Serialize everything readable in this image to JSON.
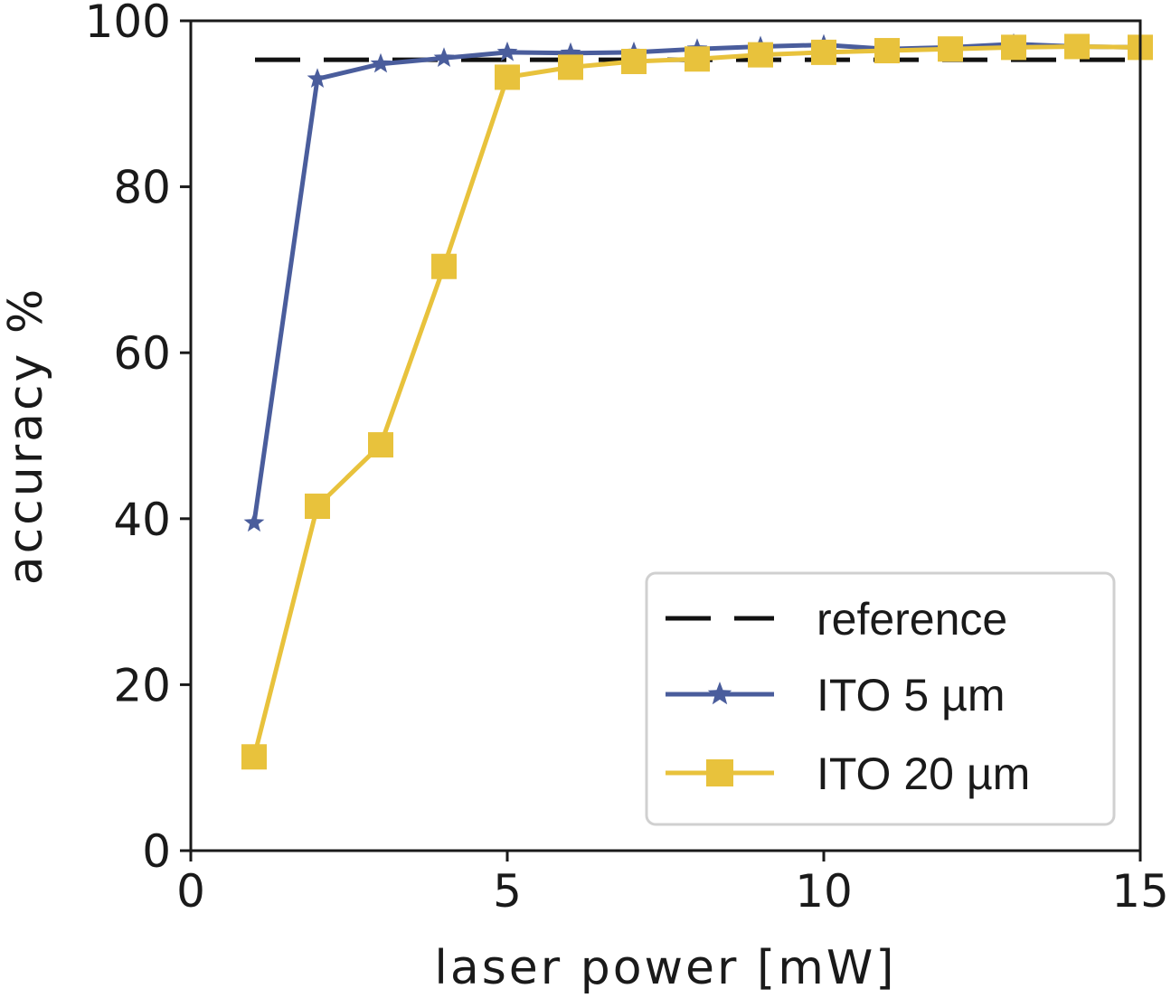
{
  "chart_data": {
    "type": "line",
    "title": "",
    "xlabel": "laser power [mW]",
    "ylabel": "accuracy %",
    "xlim": [
      0,
      15
    ],
    "ylim": [
      0,
      100
    ],
    "xticks": [
      0,
      5,
      10,
      15
    ],
    "yticks": [
      0,
      20,
      40,
      60,
      80,
      100
    ],
    "grid": false,
    "legend_position": "lower-right",
    "reference": {
      "name": "reference",
      "value": 95.3,
      "color": "#111111",
      "style": "dashed"
    },
    "series": [
      {
        "name": "ITO 5 µm",
        "color": "#4a5d9c",
        "marker": "star",
        "x": [
          1,
          2,
          3,
          4,
          5,
          6,
          7,
          8,
          9,
          10,
          11,
          12,
          13,
          14,
          15
        ],
        "y": [
          39.5,
          93.0,
          94.8,
          95.5,
          96.2,
          96.1,
          96.2,
          96.6,
          96.9,
          97.1,
          96.6,
          96.8,
          97.2,
          96.9,
          96.8
        ]
      },
      {
        "name": "ITO 20 µm",
        "color": "#e8c23c",
        "marker": "square",
        "x": [
          1,
          2,
          3,
          4,
          5,
          6,
          7,
          8,
          9,
          10,
          11,
          12,
          13,
          14,
          15
        ],
        "y": [
          11.3,
          41.5,
          48.9,
          70.4,
          93.2,
          94.4,
          95.1,
          95.4,
          95.9,
          96.2,
          96.4,
          96.6,
          96.8,
          96.9,
          96.8
        ]
      }
    ]
  }
}
